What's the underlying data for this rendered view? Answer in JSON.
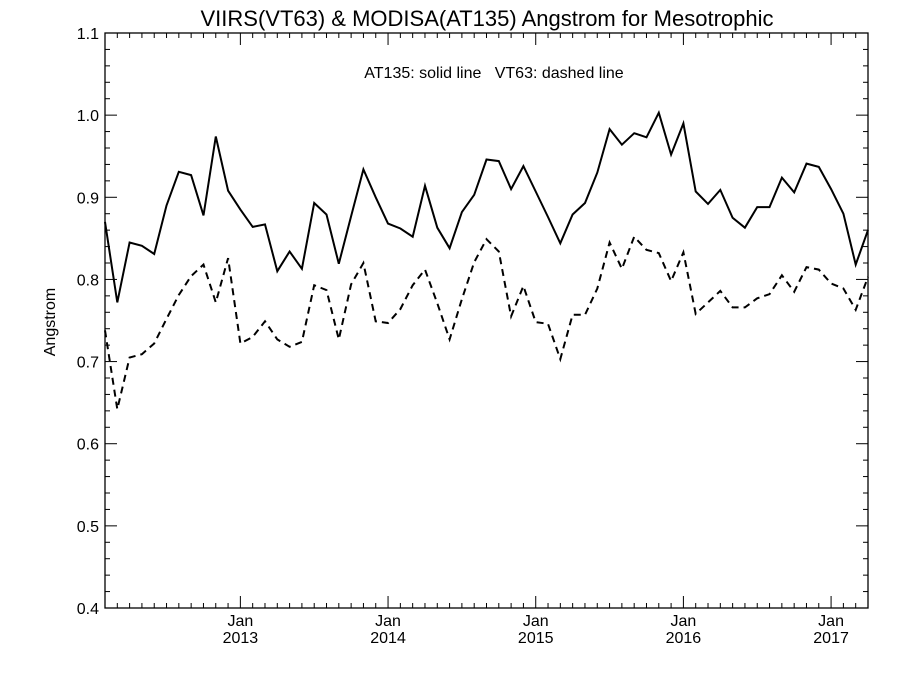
{
  "chart_data": {
    "type": "line",
    "title": "VIIRS(VT63) & MODISA(AT135)  Angstrom for Mesotrophic",
    "annotation": "AT135: solid line   VT63: dashed line",
    "xlabel": "",
    "ylabel": "Angstrom",
    "ylim": [
      0.4,
      1.1
    ],
    "y_ticks": [
      "0.4",
      "0.5",
      "0.6",
      "0.7",
      "0.8",
      "0.9",
      "1.0",
      "1.1"
    ],
    "x_ticks": [
      {
        "month": "Jan",
        "year": "2013"
      },
      {
        "month": "Jan",
        "year": "2014"
      },
      {
        "month": "Jan",
        "year": "2015"
      },
      {
        "month": "Jan",
        "year": "2016"
      },
      {
        "month": "Jan",
        "year": "2017"
      }
    ],
    "x_start": "2012-02",
    "x_end": "2017-04",
    "grid": false,
    "series": [
      {
        "name": "AT135",
        "style": "solid",
        "color": "#000000",
        "x": [
          "2012-02",
          "2012-03",
          "2012-04",
          "2012-05",
          "2012-06",
          "2012-07",
          "2012-08",
          "2012-09",
          "2012-10",
          "2012-11",
          "2012-12",
          "2013-01",
          "2013-02",
          "2013-03",
          "2013-04",
          "2013-05",
          "2013-06",
          "2013-07",
          "2013-08",
          "2013-09",
          "2013-10",
          "2013-11",
          "2013-12",
          "2014-01",
          "2014-02",
          "2014-03",
          "2014-04",
          "2014-05",
          "2014-06",
          "2014-07",
          "2014-08",
          "2014-09",
          "2014-10",
          "2014-11",
          "2014-12",
          "2015-01",
          "2015-02",
          "2015-03",
          "2015-04",
          "2015-05",
          "2015-06",
          "2015-07",
          "2015-08",
          "2015-09",
          "2015-10",
          "2015-11",
          "2015-12",
          "2016-01",
          "2016-02",
          "2016-03",
          "2016-04",
          "2016-05",
          "2016-06",
          "2016-07",
          "2016-08",
          "2016-09",
          "2016-10",
          "2016-11",
          "2016-12",
          "2017-01",
          "2017-02",
          "2017-03",
          "2017-04"
        ],
        "values": [
          0.87,
          0.772,
          0.845,
          0.841,
          0.831,
          0.89,
          0.931,
          0.927,
          0.878,
          0.974,
          0.908,
          0.885,
          0.864,
          0.867,
          0.81,
          0.834,
          0.813,
          0.893,
          0.879,
          0.819,
          0.877,
          0.934,
          0.9,
          0.868,
          0.862,
          0.852,
          0.914,
          0.863,
          0.838,
          0.882,
          0.903,
          0.946,
          0.944,
          0.91,
          0.938,
          0.907,
          0.876,
          0.844,
          0.879,
          0.893,
          0.93,
          0.983,
          0.964,
          0.978,
          0.973,
          1.003,
          0.952,
          0.99,
          0.907,
          0.892,
          0.909,
          0.875,
          0.863,
          0.888,
          0.888,
          0.924,
          0.906,
          0.941,
          0.937,
          0.91,
          0.88,
          0.818,
          0.86
        ]
      },
      {
        "name": "VT63",
        "style": "dashed",
        "color": "#000000",
        "x": [
          "2012-02",
          "2012-03",
          "2012-04",
          "2012-05",
          "2012-06",
          "2012-07",
          "2012-08",
          "2012-09",
          "2012-10",
          "2012-11",
          "2012-12",
          "2013-01",
          "2013-02",
          "2013-03",
          "2013-04",
          "2013-05",
          "2013-06",
          "2013-07",
          "2013-08",
          "2013-09",
          "2013-10",
          "2013-11",
          "2013-12",
          "2014-01",
          "2014-02",
          "2014-03",
          "2014-04",
          "2014-05",
          "2014-06",
          "2014-07",
          "2014-08",
          "2014-09",
          "2014-10",
          "2014-11",
          "2014-12",
          "2015-01",
          "2015-02",
          "2015-03",
          "2015-04",
          "2015-05",
          "2015-06",
          "2015-07",
          "2015-08",
          "2015-09",
          "2015-10",
          "2015-11",
          "2015-12",
          "2016-01",
          "2016-02",
          "2016-03",
          "2016-04",
          "2016-05",
          "2016-06",
          "2016-07",
          "2016-08",
          "2016-09",
          "2016-10",
          "2016-11",
          "2016-12",
          "2017-01",
          "2017-02",
          "2017-03",
          "2017-04"
        ],
        "values": [
          0.738,
          0.642,
          0.705,
          0.709,
          0.722,
          0.752,
          0.781,
          0.804,
          0.818,
          0.772,
          0.826,
          0.722,
          0.73,
          0.749,
          0.727,
          0.718,
          0.724,
          0.793,
          0.787,
          0.727,
          0.794,
          0.82,
          0.749,
          0.747,
          0.764,
          0.793,
          0.812,
          0.771,
          0.727,
          0.776,
          0.821,
          0.849,
          0.834,
          0.755,
          0.792,
          0.748,
          0.746,
          0.703,
          0.757,
          0.757,
          0.789,
          0.845,
          0.813,
          0.852,
          0.836,
          0.832,
          0.798,
          0.833,
          0.758,
          0.772,
          0.786,
          0.766,
          0.766,
          0.777,
          0.782,
          0.805,
          0.785,
          0.815,
          0.812,
          0.795,
          0.789,
          0.763,
          0.803
        ]
      }
    ]
  }
}
